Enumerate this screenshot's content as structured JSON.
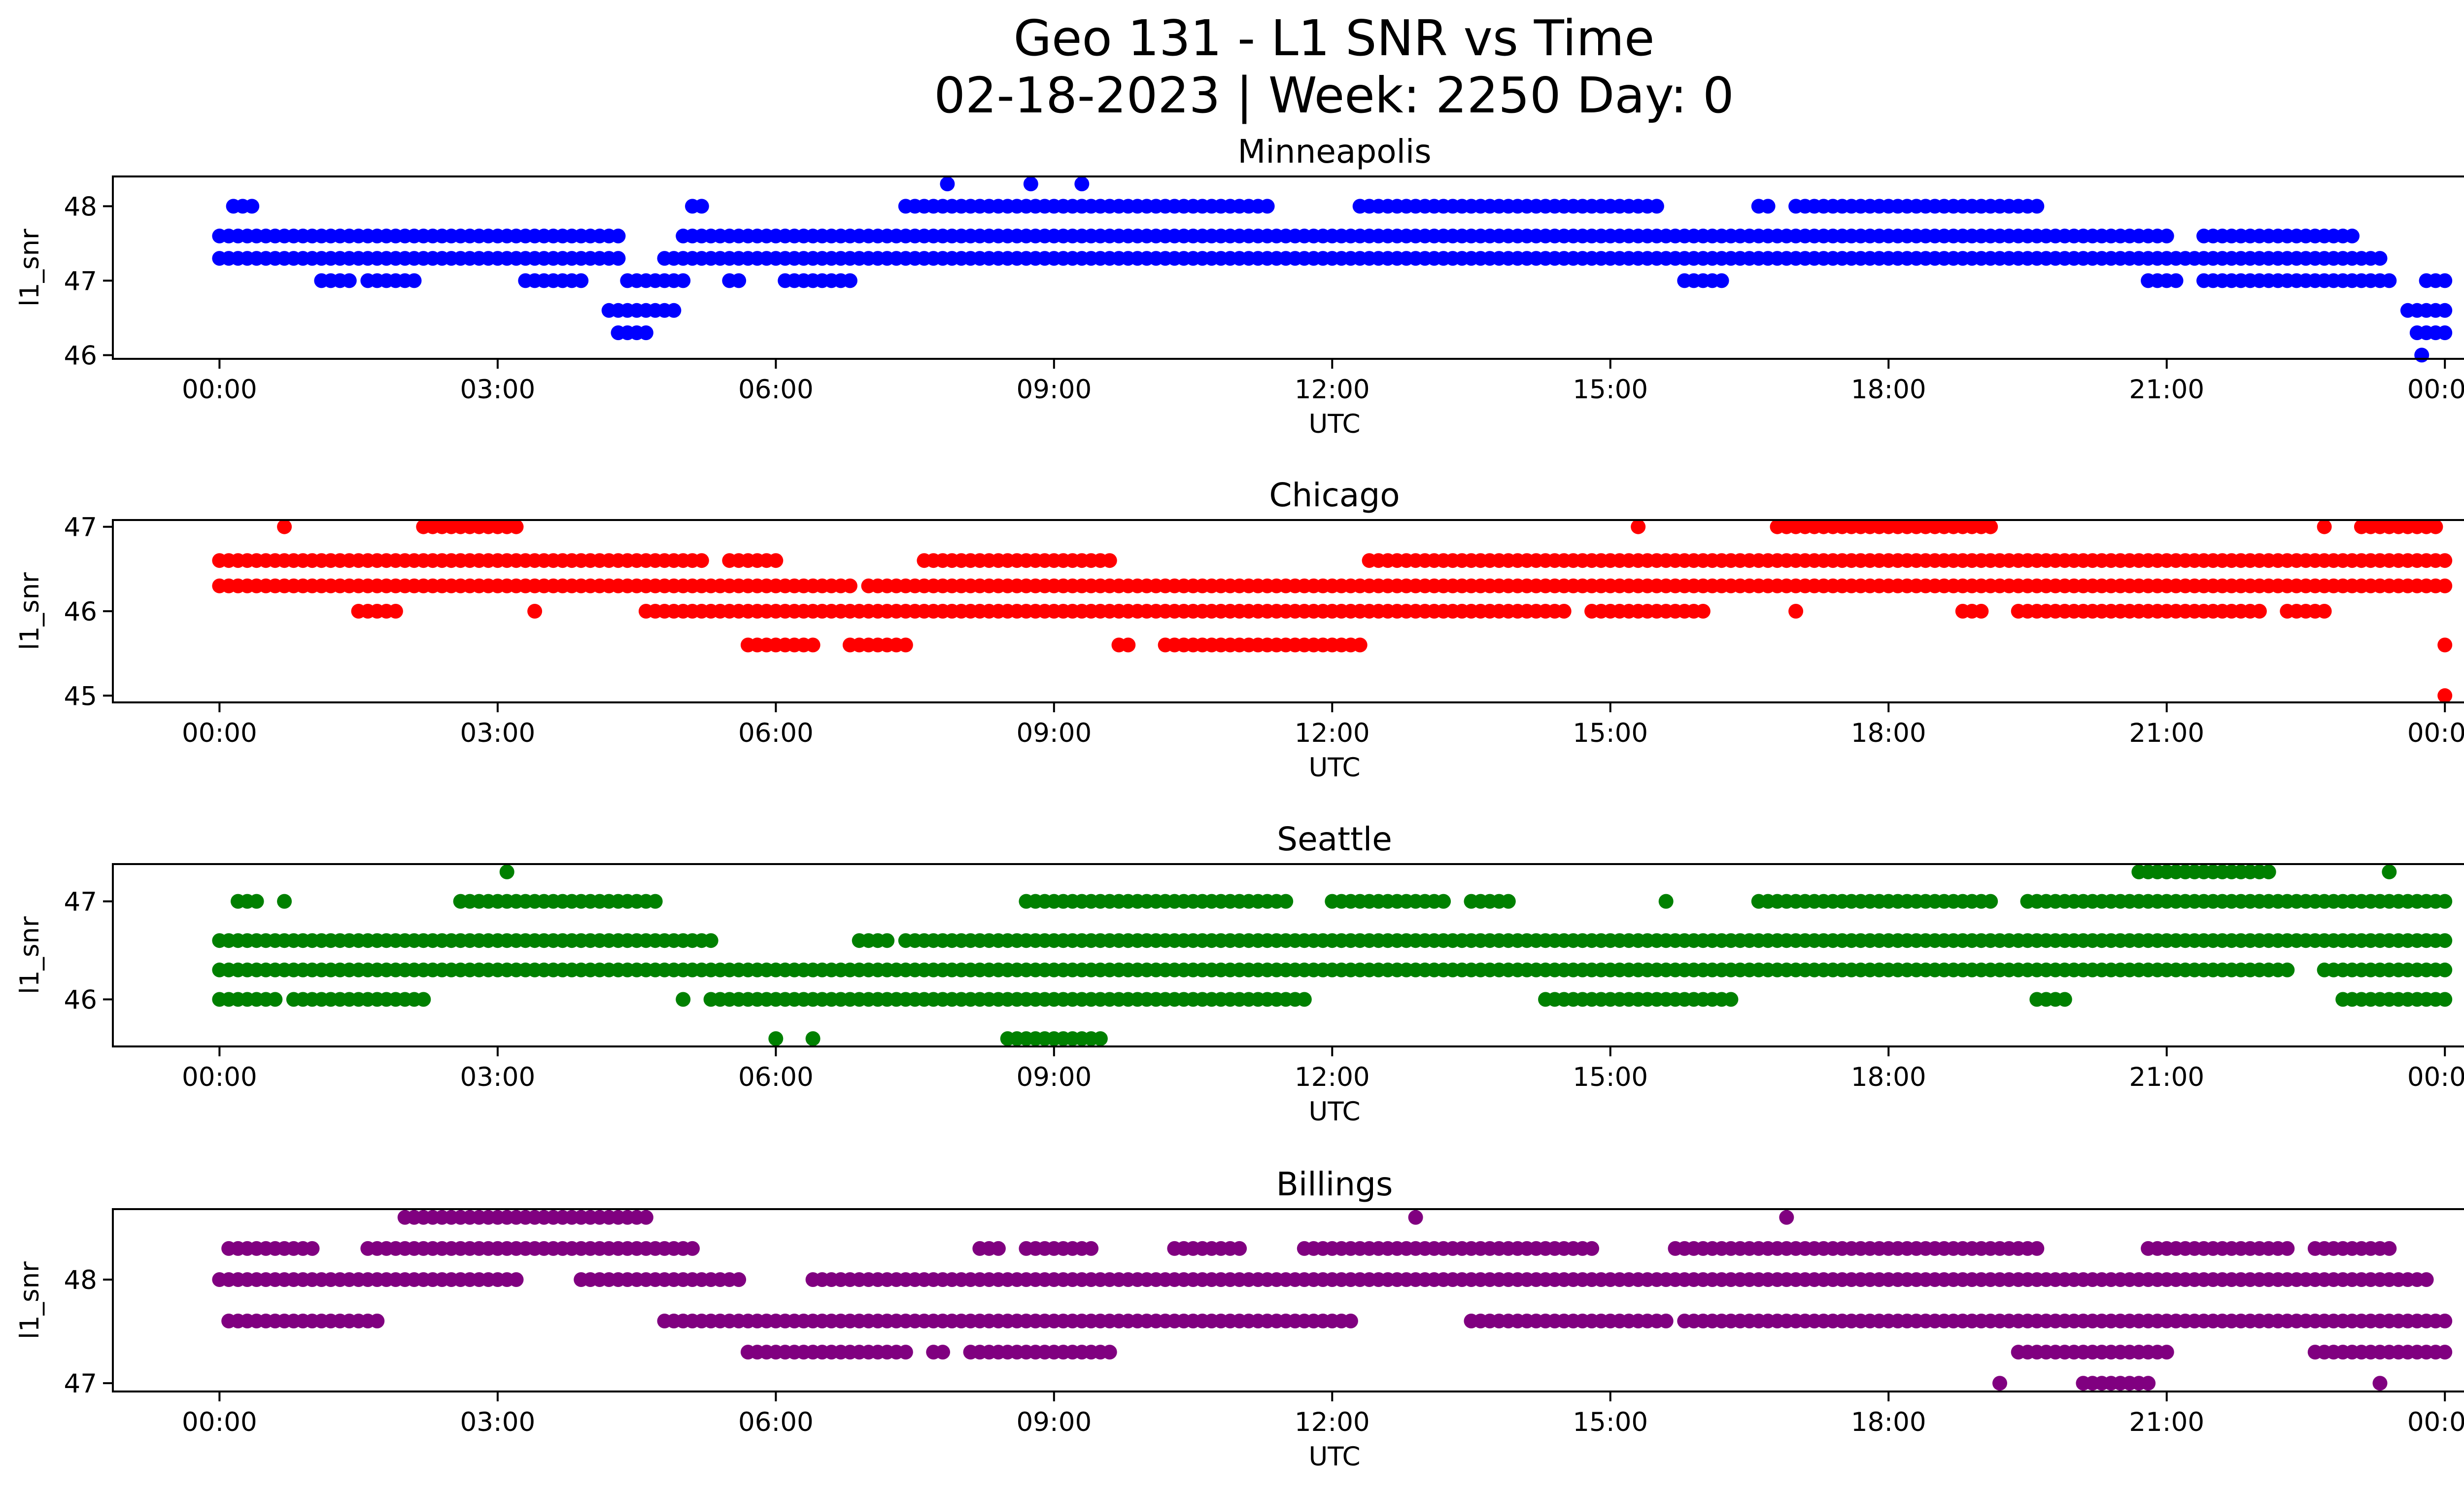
{
  "figure": {
    "title_line1": "Geo 131 - L1 SNR vs Time",
    "title_line2": "02-18-2023 | Week: 2250 Day: 0"
  },
  "chart_data": [
    {
      "type": "scatter",
      "title": "Minneapolis",
      "xlabel": "UTC",
      "ylabel": "l1_snr",
      "color": "#0000ff",
      "x_unit": "hours UTC",
      "x_ticks": [
        "00:00",
        "03:00",
        "06:00",
        "09:00",
        "12:00",
        "15:00",
        "18:00",
        "21:00",
        "00:00"
      ],
      "xlim": [
        -1.15,
        25.2
      ],
      "ylim": [
        45.95,
        48.4
      ],
      "y_ticks": [
        46,
        47,
        48
      ],
      "points": [
        {
          "y": 47.6,
          "x_ranges": [
            [
              0,
              4.3
            ],
            [
              5.0,
              21.0
            ],
            [
              21.4,
              23.0
            ]
          ]
        },
        {
          "y": 47.3,
          "x_ranges": [
            [
              0,
              4.3
            ],
            [
              4.8,
              23.3
            ]
          ]
        },
        {
          "y": 47.0,
          "x_ranges": [
            [
              1.1,
              1.4
            ],
            [
              1.6,
              2.1
            ],
            [
              3.3,
              3.9
            ],
            [
              4.4,
              5.0
            ],
            [
              5.5,
              5.6
            ],
            [
              6.1,
              6.8
            ],
            [
              15.8,
              16.2
            ],
            [
              20.8,
              21.1
            ],
            [
              21.4,
              23.4
            ],
            [
              23.8,
              24.0
            ]
          ]
        },
        {
          "y": 48.0,
          "x_ranges": [
            [
              0.15,
              0.35
            ],
            [
              5.1,
              5.2
            ],
            [
              7.4,
              11.3
            ],
            [
              12.3,
              15.5
            ],
            [
              16.6,
              16.7
            ],
            [
              17.0,
              19.6
            ]
          ]
        },
        {
          "y": 46.6,
          "x_ranges": [
            [
              4.2,
              4.9
            ],
            [
              23.6,
              24.0
            ]
          ]
        },
        {
          "y": 46.3,
          "x_ranges": [
            [
              4.3,
              4.6
            ],
            [
              23.7,
              24.0
            ]
          ]
        },
        {
          "y": 48.3,
          "x_ranges": [
            [
              7.85,
              7.85
            ],
            [
              8.75,
              8.75
            ],
            [
              9.3,
              9.3
            ]
          ]
        },
        {
          "y": 46.0,
          "x_ranges": [
            [
              23.75,
              23.75
            ]
          ]
        }
      ]
    },
    {
      "type": "scatter",
      "title": "Chicago",
      "xlabel": "UTC",
      "ylabel": "l1_snr",
      "color": "#ff0000",
      "x_unit": "hours UTC",
      "x_ticks": [
        "00:00",
        "03:00",
        "06:00",
        "09:00",
        "12:00",
        "15:00",
        "18:00",
        "21:00",
        "00:00"
      ],
      "xlim": [
        -1.15,
        25.2
      ],
      "ylim": [
        44.92,
        47.08
      ],
      "y_ticks": [
        45,
        46,
        47
      ],
      "points": [
        {
          "y": 46.6,
          "x_ranges": [
            [
              0,
              5.2
            ],
            [
              5.5,
              6.0
            ],
            [
              7.6,
              9.6
            ],
            [
              12.4,
              24.0
            ]
          ]
        },
        {
          "y": 46.3,
          "x_ranges": [
            [
              0,
              6.8
            ],
            [
              7.0,
              24.0
            ]
          ]
        },
        {
          "y": 46.0,
          "x_ranges": [
            [
              1.5,
              1.9
            ],
            [
              3.4,
              3.4
            ],
            [
              4.6,
              14.5
            ],
            [
              14.8,
              16.0
            ],
            [
              17.0,
              17.0
            ],
            [
              18.8,
              19.0
            ],
            [
              19.4,
              22.0
            ],
            [
              22.3,
              22.7
            ]
          ]
        },
        {
          "y": 47.0,
          "x_ranges": [
            [
              0.7,
              0.7
            ],
            [
              2.2,
              3.2
            ],
            [
              15.3,
              15.3
            ],
            [
              16.8,
              18.6
            ],
            [
              18.7,
              19.0
            ],
            [
              19.1,
              19.1
            ],
            [
              22.7,
              22.7
            ],
            [
              23.1,
              23.9
            ]
          ]
        },
        {
          "y": 45.6,
          "x_ranges": [
            [
              5.7,
              6.4
            ],
            [
              6.8,
              7.4
            ],
            [
              9.7,
              9.8
            ],
            [
              10.2,
              12.3
            ],
            [
              24.0,
              24.0
            ]
          ]
        },
        {
          "y": 45.0,
          "x_ranges": [
            [
              24.0,
              24.0
            ]
          ]
        }
      ]
    },
    {
      "type": "scatter",
      "title": "Seattle",
      "xlabel": "UTC",
      "ylabel": "l1_snr",
      "color": "#008000",
      "x_unit": "hours UTC",
      "x_ticks": [
        "00:00",
        "03:00",
        "06:00",
        "09:00",
        "12:00",
        "15:00",
        "18:00",
        "21:00",
        "00:00"
      ],
      "xlim": [
        -1.15,
        25.2
      ],
      "ylim": [
        45.52,
        47.38
      ],
      "y_ticks": [
        46,
        47
      ],
      "points": [
        {
          "y": 46.6,
          "x_ranges": [
            [
              0,
              5.3
            ],
            [
              6.9,
              7.2
            ],
            [
              7.4,
              24.0
            ]
          ]
        },
        {
          "y": 46.3,
          "x_ranges": [
            [
              0,
              22.3
            ],
            [
              22.7,
              24.0
            ]
          ]
        },
        {
          "y": 46.0,
          "x_ranges": [
            [
              0,
              0.6
            ],
            [
              0.8,
              2.2
            ],
            [
              5.0,
              5.0
            ],
            [
              5.3,
              11.7
            ],
            [
              14.3,
              16.3
            ],
            [
              19.6,
              19.9
            ],
            [
              22.9,
              24.0
            ]
          ]
        },
        {
          "y": 47.0,
          "x_ranges": [
            [
              0.2,
              0.4
            ],
            [
              0.7,
              0.7
            ],
            [
              2.6,
              4.7
            ],
            [
              8.7,
              11.5
            ],
            [
              12.0,
              13.2
            ],
            [
              13.5,
              13.9
            ],
            [
              15.6,
              15.6
            ],
            [
              16.6,
              19.1
            ],
            [
              19.5,
              24.0
            ]
          ]
        },
        {
          "y": 47.3,
          "x_ranges": [
            [
              3.1,
              3.1
            ],
            [
              20.7,
              22.1
            ],
            [
              23.4,
              23.4
            ]
          ]
        },
        {
          "y": 45.6,
          "x_ranges": [
            [
              6.0,
              6.0
            ],
            [
              6.4,
              6.4
            ],
            [
              8.5,
              9.5
            ]
          ]
        }
      ]
    },
    {
      "type": "scatter",
      "title": "Billings",
      "xlabel": "UTC",
      "ylabel": "l1_snr",
      "color": "#800080",
      "x_unit": "hours UTC",
      "x_ticks": [
        "00:00",
        "03:00",
        "06:00",
        "09:00",
        "12:00",
        "15:00",
        "18:00",
        "21:00",
        "00:00"
      ],
      "xlim": [
        -1.15,
        25.2
      ],
      "ylim": [
        46.92,
        48.68
      ],
      "y_ticks": [
        47,
        48
      ],
      "points": [
        {
          "y": 48.0,
          "x_ranges": [
            [
              0,
              2.9
            ],
            [
              3.0,
              3.2
            ],
            [
              3.9,
              5.6
            ],
            [
              6.4,
              23.8
            ]
          ]
        },
        {
          "y": 47.6,
          "x_ranges": [
            [
              0.1,
              1.7
            ],
            [
              4.8,
              12.2
            ],
            [
              13.5,
              15.6
            ],
            [
              15.8,
              24.0
            ]
          ]
        },
        {
          "y": 48.3,
          "x_ranges": [
            [
              0.1,
              1.0
            ],
            [
              1.6,
              5.1
            ],
            [
              8.2,
              8.4
            ],
            [
              8.7,
              9.4
            ],
            [
              10.3,
              11.0
            ],
            [
              11.7,
              14.8
            ],
            [
              15.7,
              19.6
            ],
            [
              20.8,
              22.3
            ],
            [
              22.6,
              23.4
            ]
          ]
        },
        {
          "y": 47.3,
          "x_ranges": [
            [
              5.7,
              7.4
            ],
            [
              7.7,
              7.8
            ],
            [
              8.1,
              9.6
            ],
            [
              19.4,
              21.0
            ],
            [
              22.6,
              24.0
            ]
          ]
        },
        {
          "y": 48.6,
          "x_ranges": [
            [
              2.0,
              3.9
            ],
            [
              4.0,
              4.6
            ],
            [
              12.9,
              12.9
            ],
            [
              16.9,
              16.9
            ]
          ]
        },
        {
          "y": 47.0,
          "x_ranges": [
            [
              19.2,
              19.2
            ],
            [
              20.1,
              20.8
            ],
            [
              23.3,
              23.3
            ]
          ]
        }
      ]
    }
  ]
}
